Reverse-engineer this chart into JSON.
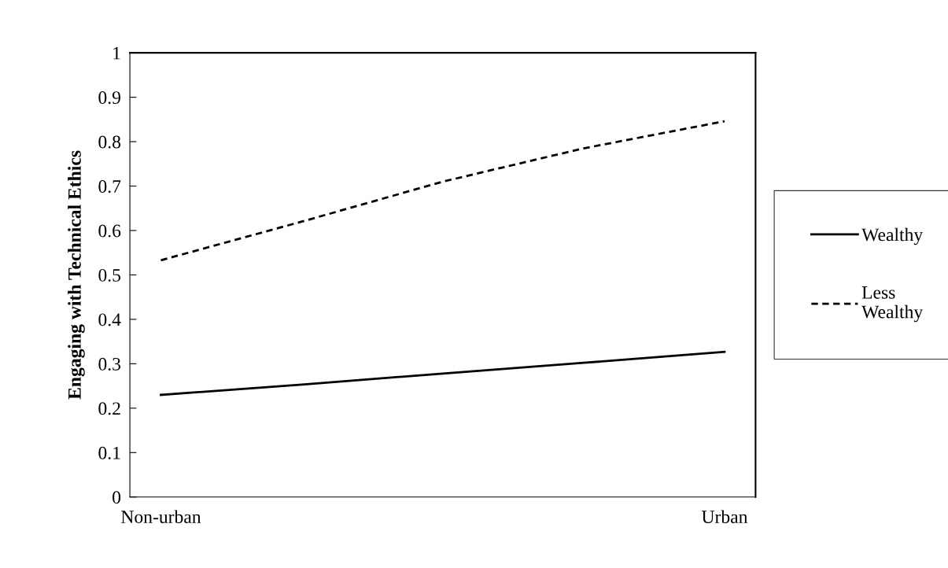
{
  "chart_data": {
    "type": "line",
    "ylabel": "Engaging with Technical Ethics",
    "categories": [
      "Non-urban",
      null,
      null,
      null,
      "Urban"
    ],
    "ylim": [
      0,
      1
    ],
    "yticks": [
      0,
      0.1,
      0.2,
      0.3,
      0.4,
      0.5,
      0.6,
      0.7,
      0.8,
      0.9,
      1
    ],
    "series": [
      {
        "name": "Wealthy",
        "color": "#000000",
        "line_style": "solid",
        "values": [
          0.23,
          0.253,
          0.278,
          0.302,
          0.327
        ]
      },
      {
        "name": "Less\nWealthy",
        "color": "#000000",
        "line_style": "dashed",
        "values": [
          0.533,
          0.62,
          0.71,
          0.785,
          0.846
        ]
      }
    ],
    "grid": false,
    "legend": "right",
    "marker": "none"
  }
}
